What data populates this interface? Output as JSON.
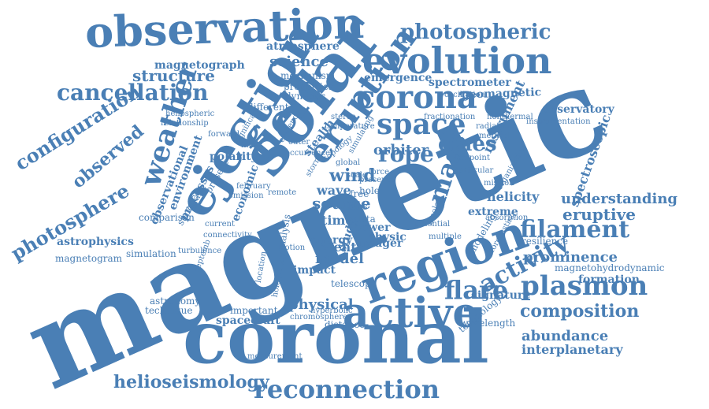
{
  "color": "#4a7fb5",
  "words": [
    "magnetic",
    "coronal",
    "region",
    "ejection",
    "solar",
    "observation",
    "evolution",
    "field",
    "eruption",
    "corona",
    "space",
    "weather",
    "active",
    "reconnection",
    "plasmon",
    "filament",
    "activity",
    "flare",
    "cmes",
    "rope",
    "mass",
    "photospheric",
    "cancellation",
    "configuration",
    "photosphere",
    "observed",
    "structure",
    "composition",
    "helioseismology",
    "eruptive",
    "prominence",
    "abundance",
    "interplanetary",
    "understanding",
    "science",
    "atmosphere",
    "emergence",
    "spacecraft",
    "physical",
    "formation",
    "wind",
    "orbiter",
    "source",
    "helicity",
    "spectrometer",
    "geomagnetic",
    "observatory",
    "model",
    "event",
    "impact",
    "instrument",
    "spectroscopic",
    "signature",
    "magnetohydrodynamic",
    "astrophysics",
    "magnetogram",
    "magnetograph",
    "mechanism",
    "properties",
    "dynamic",
    "environment",
    "observational",
    "polarity",
    "present",
    "processes",
    "economic",
    "sunquake",
    "technique",
    "astronomy",
    "simulation",
    "comparison",
    "turbulence",
    "stealth",
    "energy",
    "imager",
    "physic",
    "power",
    "study",
    "time",
    "bias",
    "data",
    "free",
    "hole",
    "wave",
    "telescope",
    "extreme",
    "modeling",
    "resilience",
    "technology",
    "wavelength",
    "distance",
    "important",
    "measurement",
    "chromosphere",
    "hyperbolic",
    "mission",
    "absorption",
    "instrumentation",
    "radiation",
    "method",
    "nonthermal",
    "different",
    "heliospheric",
    "relationship",
    "significant",
    "location",
    "holography",
    "analysis",
    "motion",
    "potential",
    "multiple",
    "forecasting",
    "septemb",
    "bipolar",
    "organization",
    "particular",
    "footpoint",
    "remote",
    "global",
    "emission",
    "february",
    "force",
    "presence",
    "scale",
    "storm",
    "topology",
    "stereo",
    "temperature",
    "simulating",
    "fractionation",
    "oscillation",
    "evidence",
    "occurrence",
    "outer",
    "inner",
    "current",
    "connectivity",
    "forward",
    "atmosphere"
  ]
}
